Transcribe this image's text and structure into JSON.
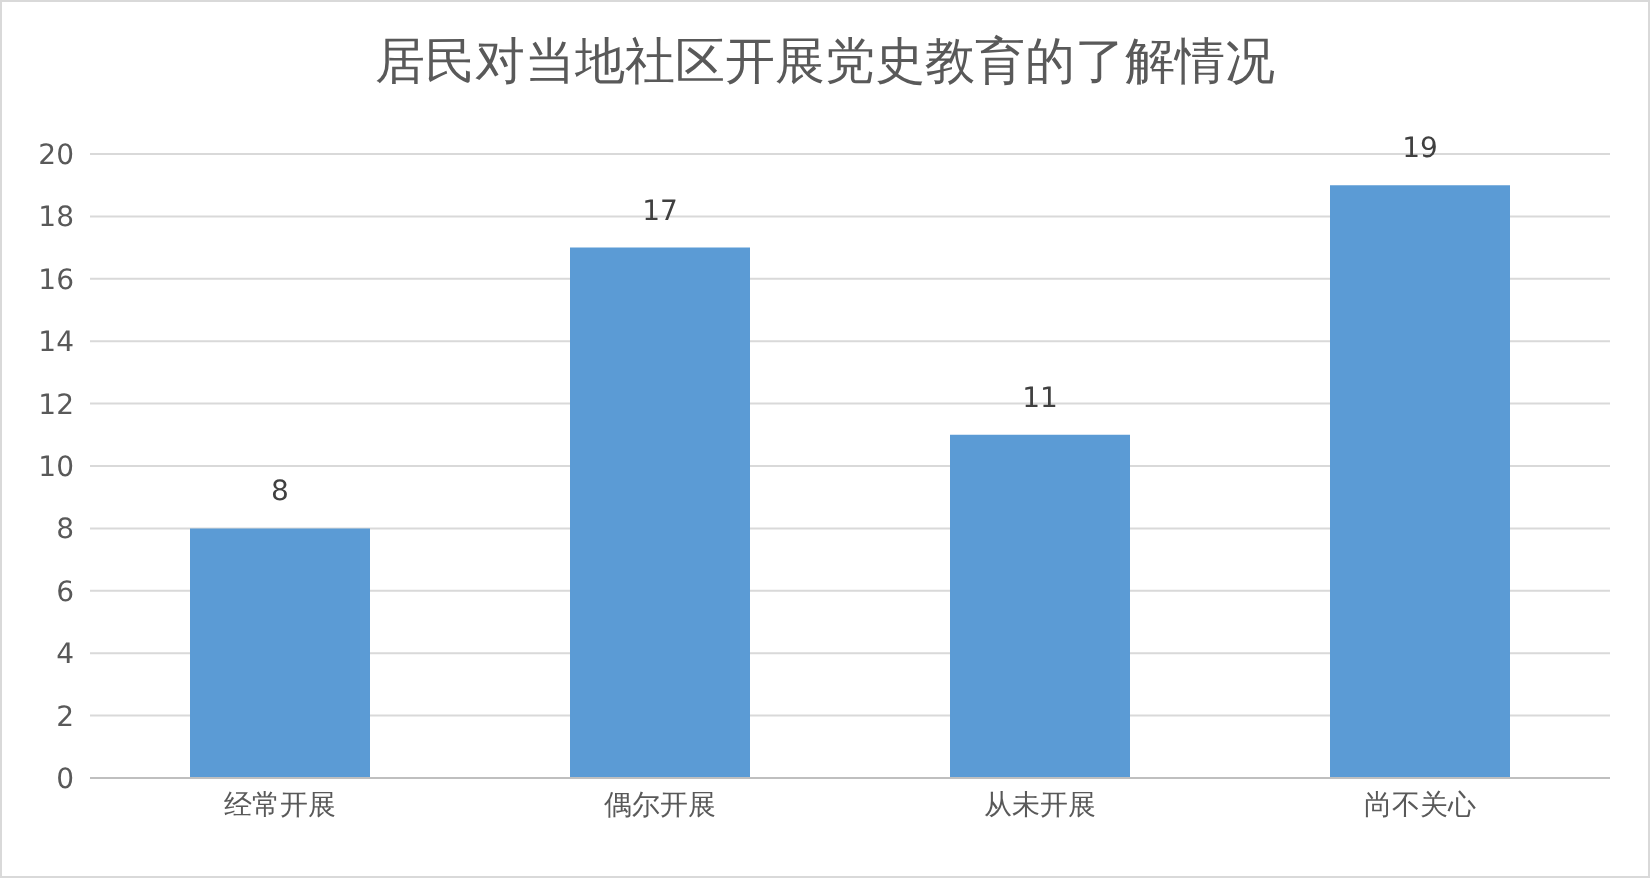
{
  "chart_data": {
    "type": "bar",
    "title": "居民对当地社区开展党史教育的了解情况",
    "categories": [
      "经常开展",
      "偶尔开展",
      "从未开展",
      "尚不关心"
    ],
    "values": [
      8,
      17,
      11,
      19
    ],
    "color": "#5b9bd5",
    "ylim": [
      0,
      20
    ],
    "yticks": [
      0,
      2,
      4,
      6,
      8,
      10,
      12,
      14,
      16,
      18,
      20
    ],
    "grid": "y",
    "data_labels": true
  }
}
